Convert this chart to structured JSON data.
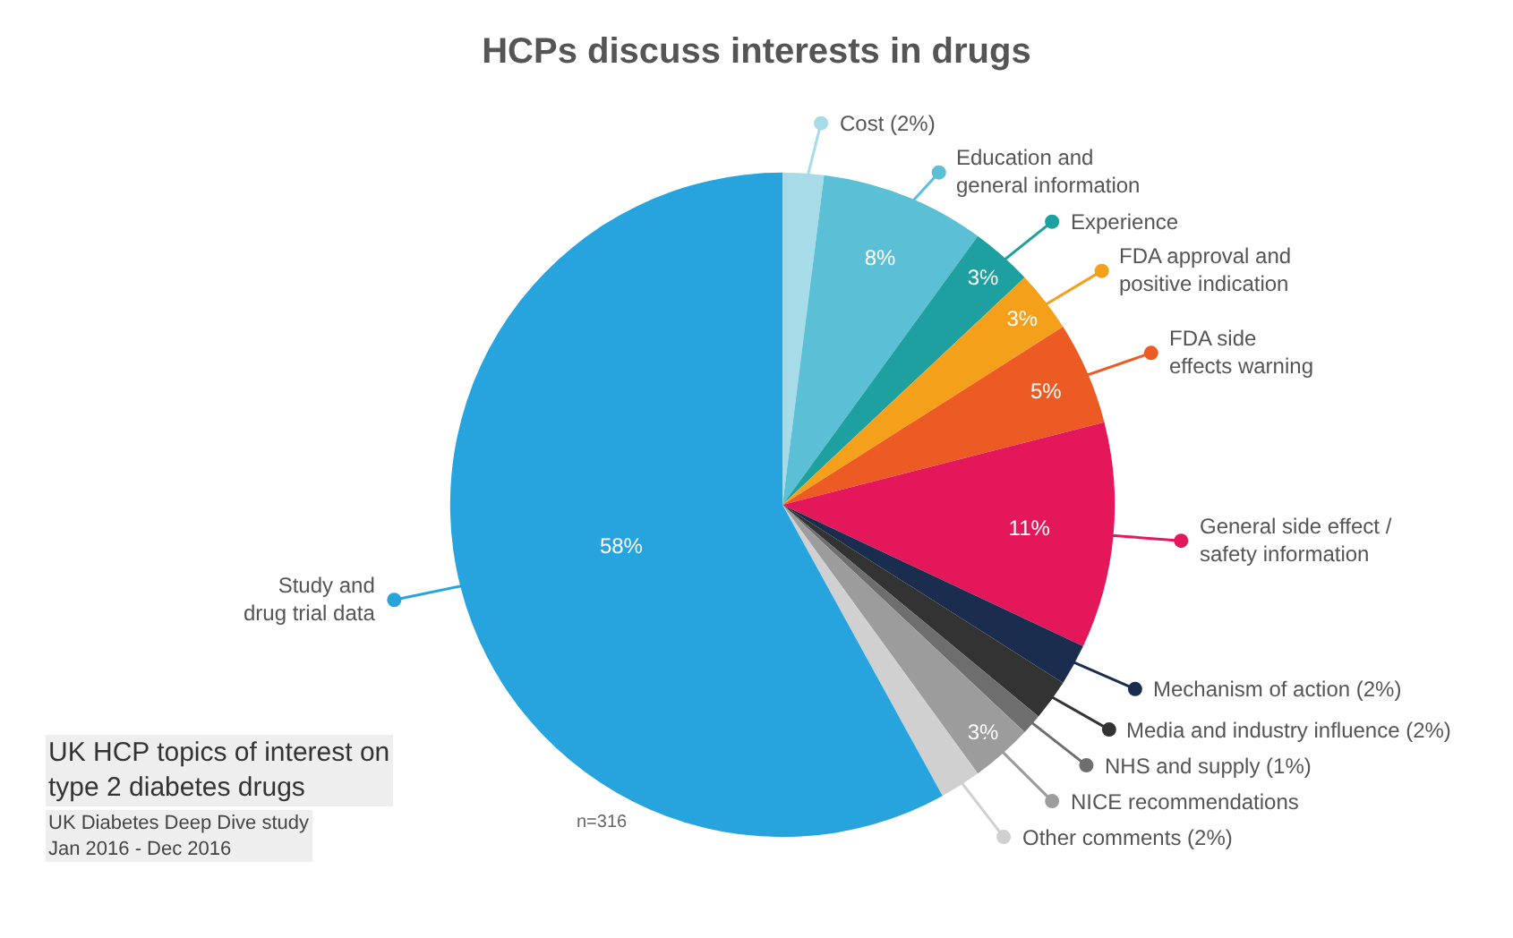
{
  "chart_data": {
    "type": "pie",
    "title": "HCPs discuss interests in drugs",
    "categories": [
      "Cost (2%)",
      "Education and\ngeneral information",
      "Experience",
      "FDA approval and\npositive indication",
      "FDA side\neffects warning",
      "General side effect /\nsafety information",
      "Mechanism of action (2%)",
      "Media and industry influence (2%)",
      "NHS and supply (1%)",
      "NICE recommendations",
      "Other comments (2%)",
      "Study and\ndrug trial data"
    ],
    "values": [
      2,
      8,
      3,
      3,
      5,
      11,
      2,
      2,
      1,
      3,
      2,
      58
    ],
    "colors": [
      "#a8dbe8",
      "#5bbfd6",
      "#1fa0a0",
      "#f5a01a",
      "#ec5b24",
      "#e4175a",
      "#1b2d4f",
      "#333333",
      "#6e6e6e",
      "#9c9c9c",
      "#d0d0d0",
      "#27a4dd"
    ],
    "value_labels": [
      null,
      "8%",
      "3%",
      "3%",
      "5%",
      "11%",
      null,
      null,
      null,
      "3%",
      null,
      "58%"
    ],
    "legend": "right",
    "annotations": [
      "UK HCP topics of interest on\ntype 2 diabetes drugs",
      "UK Diabetes Deep Dive study\nJan 2016 - Dec 2016",
      "n=316"
    ]
  }
}
